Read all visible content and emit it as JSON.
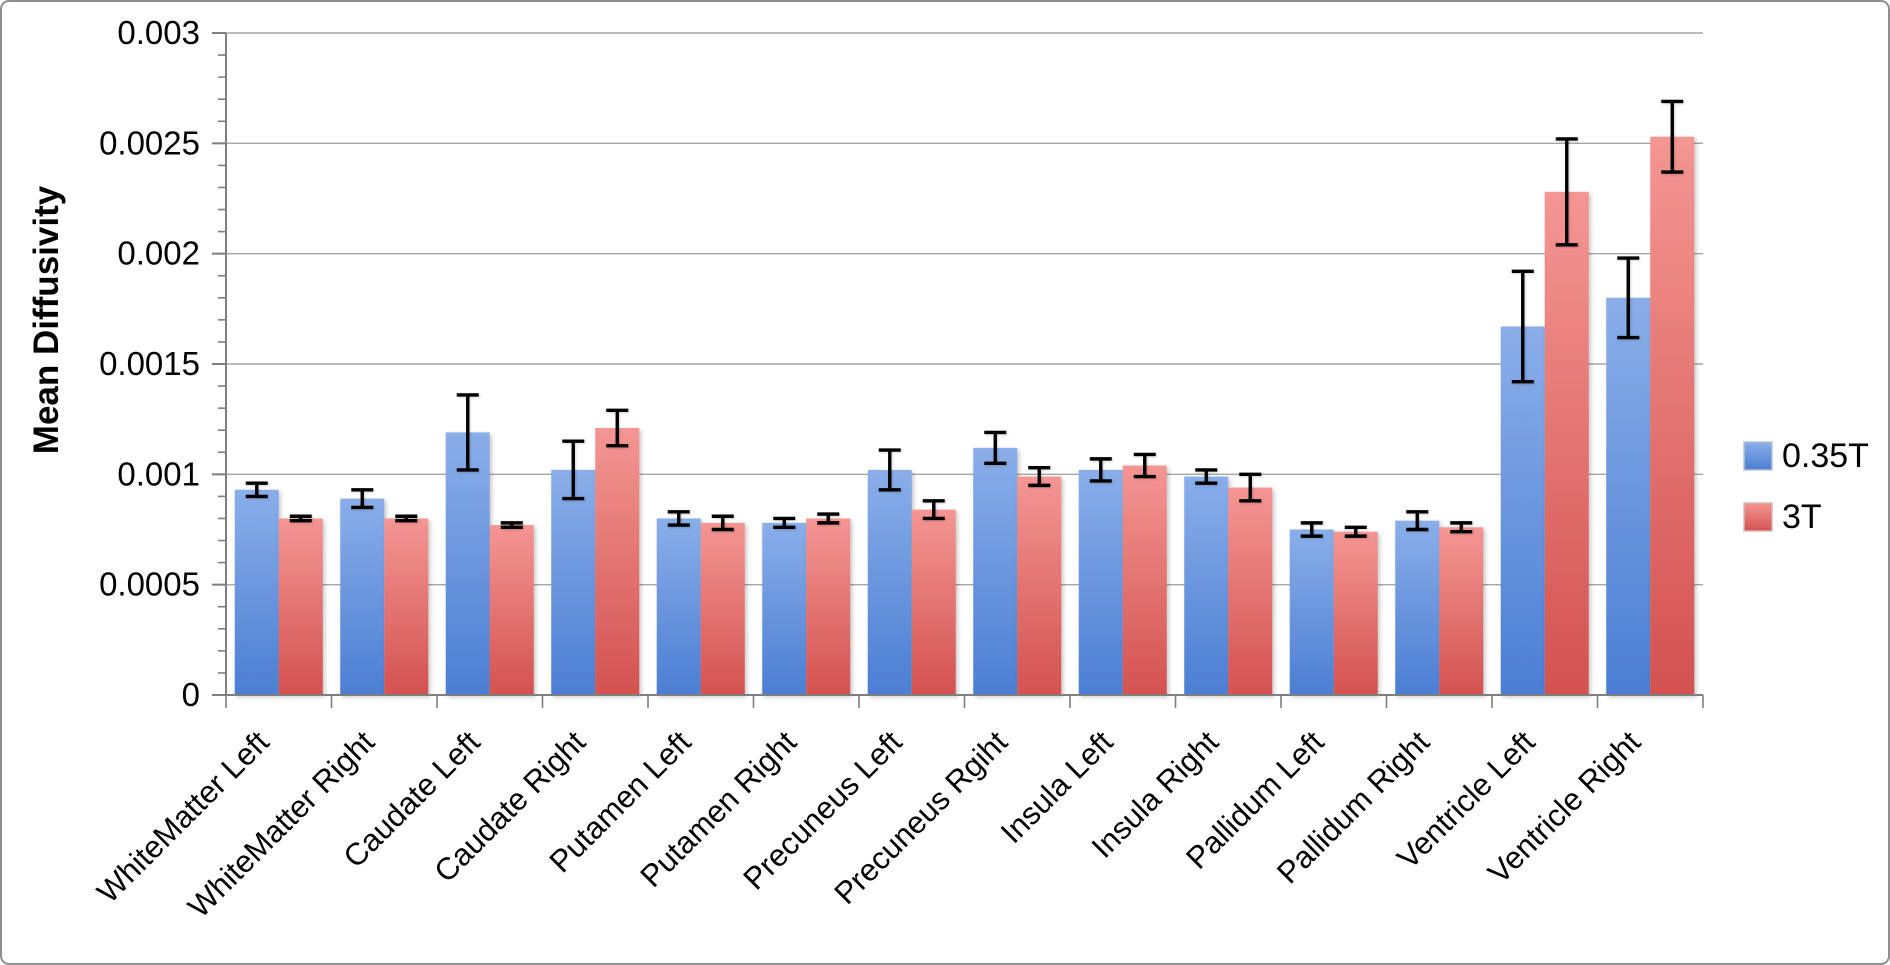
{
  "chart_data": {
    "type": "bar",
    "title": "",
    "xlabel": "",
    "ylabel": "Mean Diffusivity",
    "ylim": [
      0,
      0.003
    ],
    "grid": true,
    "legend_position": "right",
    "yticks": [
      {
        "value": 0,
        "label": "0"
      },
      {
        "value": 0.0005,
        "label": "0.0005"
      },
      {
        "value": 0.001,
        "label": "0.001"
      },
      {
        "value": 0.0015,
        "label": "0.0015"
      },
      {
        "value": 0.002,
        "label": "0.002"
      },
      {
        "value": 0.0025,
        "label": "0.0025"
      },
      {
        "value": 0.003,
        "label": "0.003"
      }
    ],
    "ytick_minor_step": 0.0001,
    "categories": [
      "WhiteMatter Left",
      "WhiteMatter Right",
      "Caudate Left",
      "Caudate Right",
      "Putamen Left",
      "Putamen Right",
      "Precuneus Left",
      "Precuneus Rgiht",
      "Insula Left",
      "Insula Right",
      "Pallidum Left",
      "Pallidum Right",
      "Ventricle Left",
      "Ventricle Right"
    ],
    "series": [
      {
        "name": "0.35T",
        "color_top": "#8AAEE9",
        "color_bottom": "#4B7ED3",
        "values": [
          0.00093,
          0.00089,
          0.00119,
          0.00102,
          0.0008,
          0.00078,
          0.00102,
          0.00112,
          0.00102,
          0.00099,
          0.00075,
          0.00079,
          0.00167,
          0.0018
        ],
        "errors": [
          3e-05,
          4e-05,
          0.00017,
          0.00013,
          3e-05,
          2e-05,
          9e-05,
          7e-05,
          5e-05,
          3e-05,
          3e-05,
          4e-05,
          0.00025,
          0.00018
        ]
      },
      {
        "name": "3T",
        "color_top": "#F49693",
        "color_bottom": "#D35250",
        "values": [
          0.0008,
          0.0008,
          0.00077,
          0.00121,
          0.00078,
          0.0008,
          0.00084,
          0.00099,
          0.00104,
          0.00094,
          0.00074,
          0.00076,
          0.00228,
          0.00253
        ],
        "errors": [
          1e-05,
          1e-05,
          1e-05,
          8e-05,
          3e-05,
          2e-05,
          4e-05,
          4e-05,
          5e-05,
          6e-05,
          2e-05,
          2e-05,
          0.00024,
          0.00016
        ]
      }
    ],
    "style": {
      "gridline_color": "#a6a6a6",
      "axis_color": "#7f7f7f",
      "error_bar_color": "#000000"
    }
  }
}
